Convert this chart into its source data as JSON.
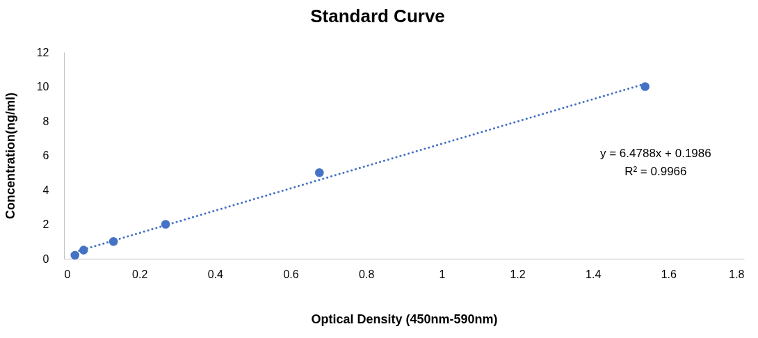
{
  "chart_data": {
    "type": "scatter",
    "title": "Standard Curve",
    "xlabel": "Optical Density (450nm-590nm)",
    "ylabel": "Concentration(ng/ml)",
    "xlim": [
      0,
      1.8
    ],
    "xticks": [
      0,
      0.2,
      0.4,
      0.6,
      0.8,
      1,
      1.2,
      1.4,
      1.6,
      1.8
    ],
    "ylim": [
      0,
      12
    ],
    "yticks": [
      0,
      2,
      4,
      6,
      8,
      10,
      12
    ],
    "annotations": [
      "y = 6.4788x + 0.1986",
      "R² = 0.9966"
    ],
    "series": [
      {
        "marker": "circle",
        "color": "#4472c4",
        "x": [
          0.029,
          0.052,
          0.131,
          0.269,
          0.676,
          1.538
        ],
        "values": [
          0.2,
          0.5,
          1,
          2,
          5,
          10
        ]
      },
      {
        "type": "line",
        "color": "#4472c4",
        "line_style": "dotted",
        "x": [
          0.029,
          1.538
        ],
        "values": [
          0.39,
          10.16
        ]
      }
    ]
  }
}
